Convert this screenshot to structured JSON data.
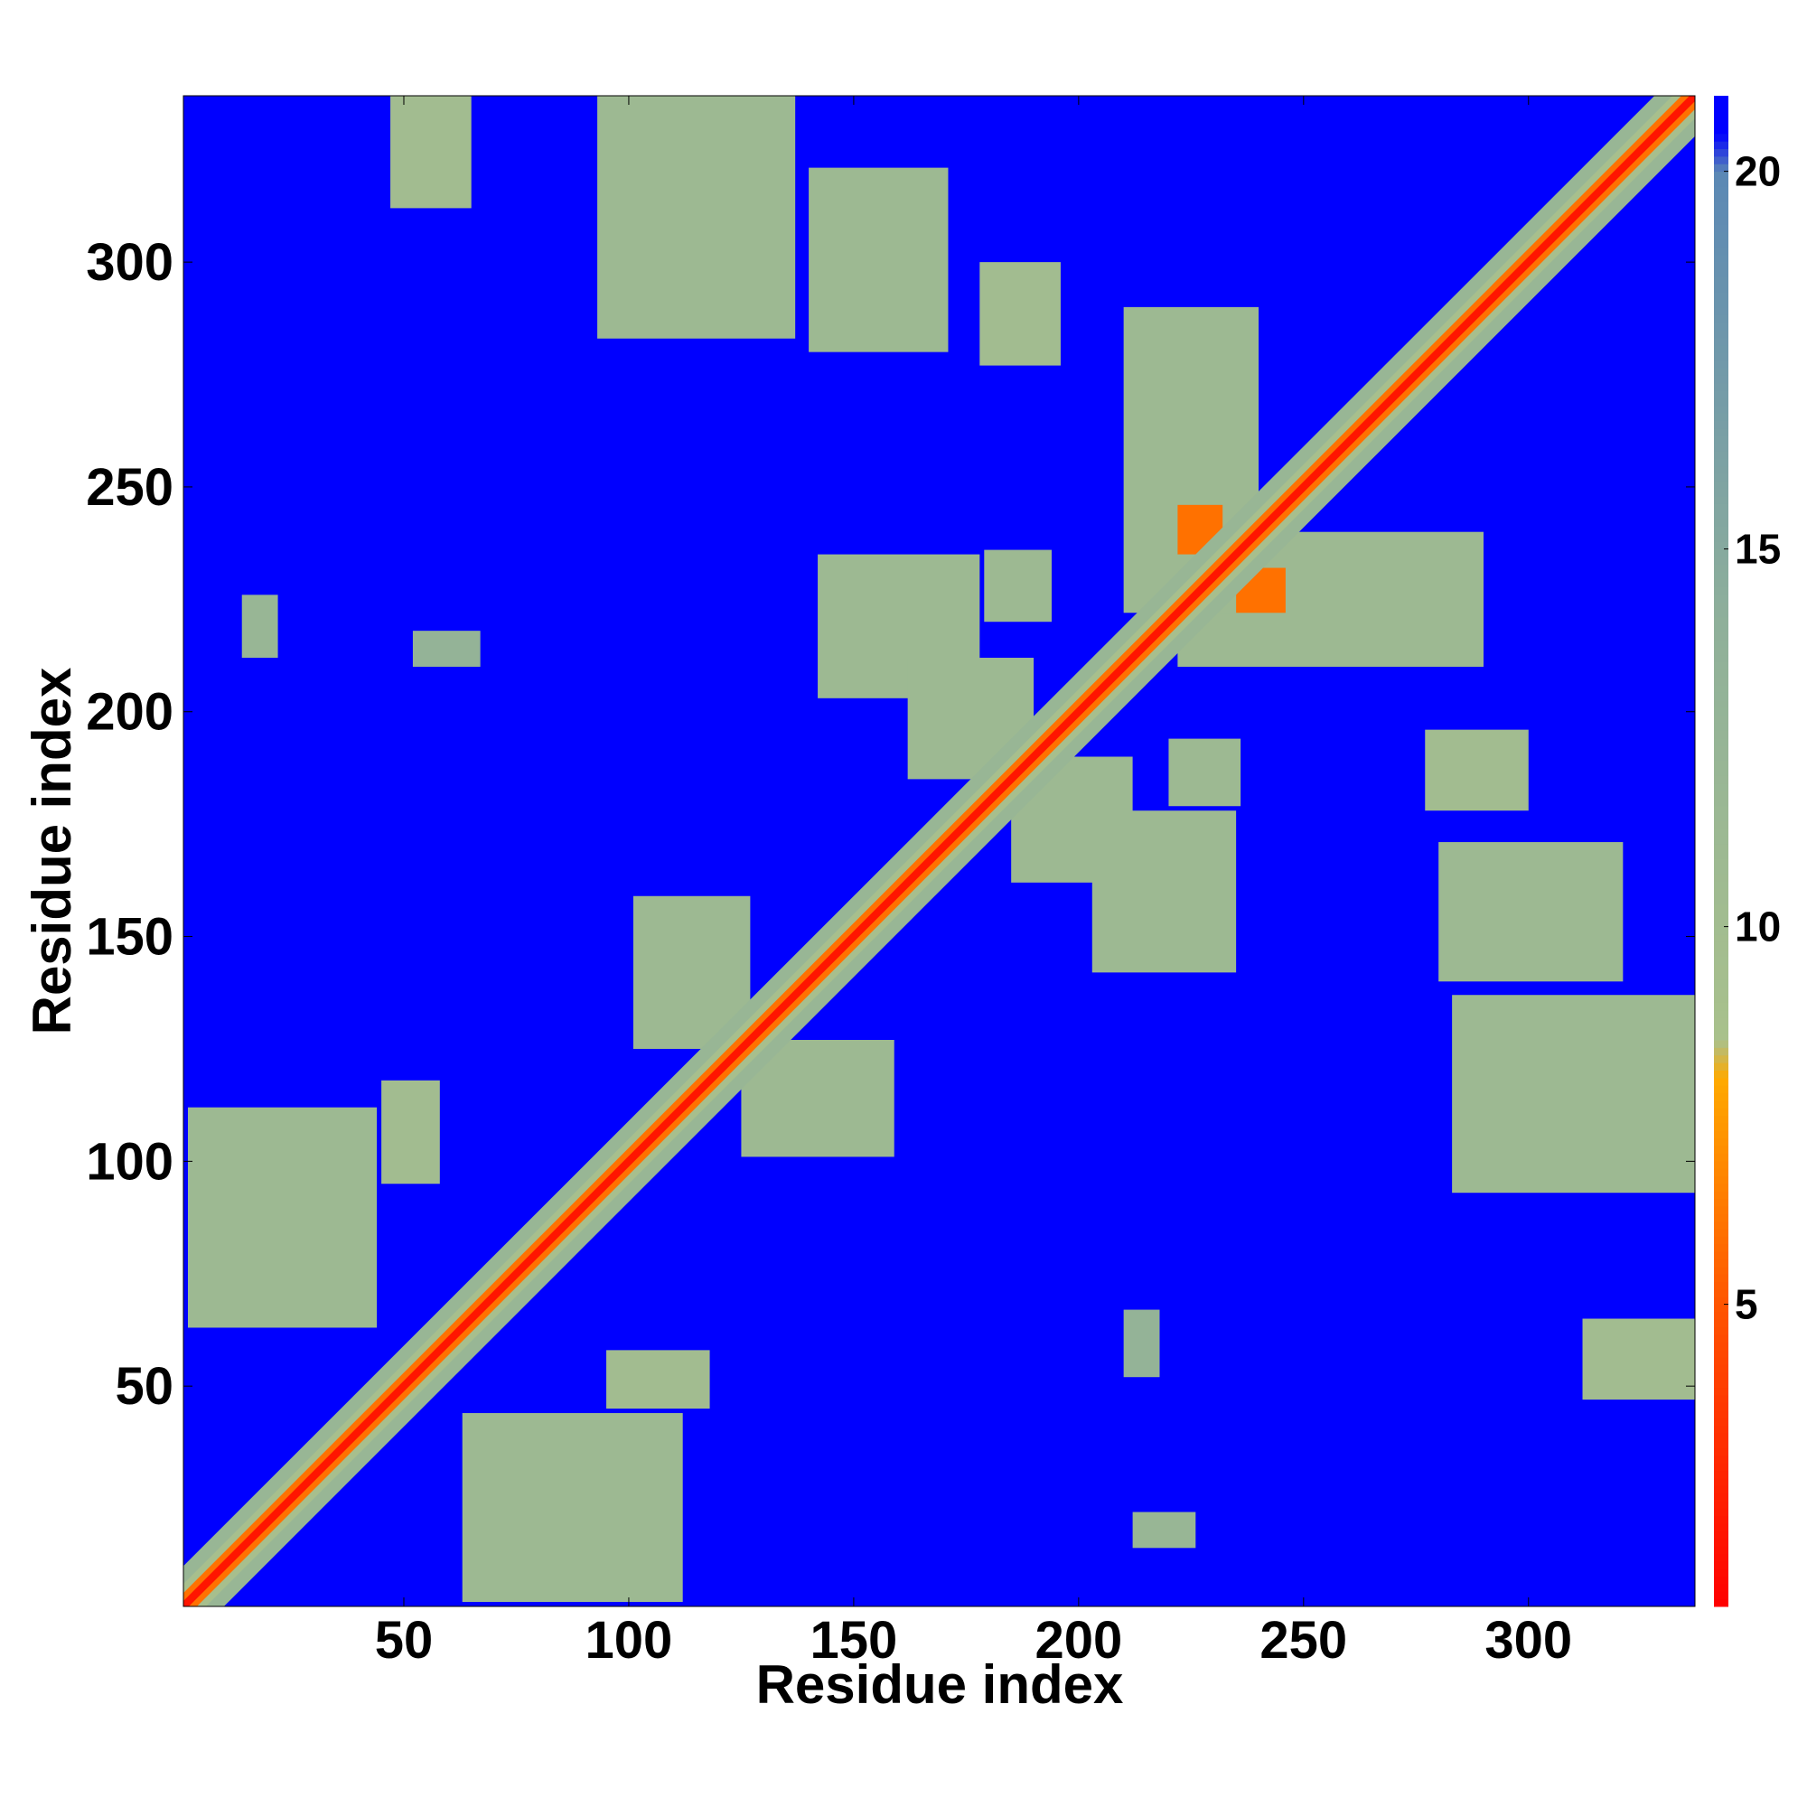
{
  "chart_data": {
    "type": "heatmap",
    "xlabel": "Residue index",
    "ylabel": "Residue index",
    "xlim": [
      1,
      337
    ],
    "ylim": [
      1,
      337
    ],
    "xticks": [
      50,
      100,
      150,
      200,
      250,
      300
    ],
    "yticks": [
      50,
      100,
      150,
      200,
      250,
      300
    ],
    "clim": [
      1,
      21
    ],
    "cticks": [
      5,
      10,
      15,
      20
    ],
    "colorscale": [
      {
        "value": 1,
        "color": "#ff0000"
      },
      {
        "value": 5,
        "color": "#ff5500"
      },
      {
        "value": 8,
        "color": "#ffaa00"
      },
      {
        "value": 8.5,
        "color": "#a9c18c"
      },
      {
        "value": 14,
        "color": "#8fb09a"
      },
      {
        "value": 20,
        "color": "#5b88b5"
      },
      {
        "value": 20.5,
        "color": "#0000ff"
      },
      {
        "value": 21,
        "color": "#0000ff"
      }
    ],
    "background": 21,
    "symmetric": true,
    "bands": [
      {
        "offset": 9,
        "value": 12
      },
      {
        "offset": 5,
        "value": 9
      },
      {
        "offset": 3,
        "value": 6
      },
      {
        "offset": 1.2,
        "value": 2
      }
    ],
    "patches": [
      {
        "x": [
          63,
          112
        ],
        "y": [
          2,
          44
        ],
        "value": 11
      },
      {
        "x": [
          95,
          118
        ],
        "y": [
          45,
          58
        ],
        "value": 10
      },
      {
        "x": [
          125,
          159
        ],
        "y": [
          101,
          127
        ],
        "value": 11
      },
      {
        "x": [
          203,
          235
        ],
        "y": [
          142,
          178
        ],
        "value": 11
      },
      {
        "x": [
          220,
          236
        ],
        "y": [
          179,
          194
        ],
        "value": 11
      },
      {
        "x": [
          277,
          300
        ],
        "y": [
          178,
          196
        ],
        "value": 10
      },
      {
        "x": [
          280,
          321
        ],
        "y": [
          140,
          171
        ],
        "value": 11
      },
      {
        "x": [
          283,
          337
        ],
        "y": [
          93,
          137
        ],
        "value": 11
      },
      {
        "x": [
          312,
          337
        ],
        "y": [
          47,
          65
        ],
        "value": 10
      },
      {
        "x": [
          212,
          226
        ],
        "y": [
          14,
          22
        ],
        "value": 12
      },
      {
        "x": [
          210,
          218
        ],
        "y": [
          52,
          67
        ],
        "value": 13
      },
      {
        "x": [
          222,
          290
        ],
        "y": [
          210,
          240
        ],
        "value": 11
      },
      {
        "x": [
          185,
          212
        ],
        "y": [
          162,
          190
        ],
        "value": 11
      },
      {
        "x": [
          235,
          246
        ],
        "y": [
          222,
          232
        ],
        "value": 6
      }
    ]
  }
}
